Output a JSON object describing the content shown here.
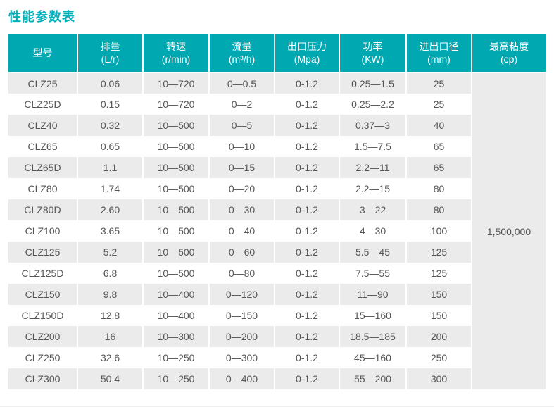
{
  "page_title": "性能参数表",
  "colors": {
    "accent_teal": "#00a9b2",
    "title_teal": "#00b1bb",
    "row_alt_gray": "#ebebeb",
    "merged_cell_gray": "#efefef",
    "header_text": "#ffffff",
    "body_text": "#555555"
  },
  "table": {
    "headers": [
      {
        "name": "型号",
        "unit": ""
      },
      {
        "name": "排量",
        "unit": "(L/r)"
      },
      {
        "name": "转速",
        "unit": "(r/min)"
      },
      {
        "name": "流量",
        "unit": "(m³/h)"
      },
      {
        "name": "出口压力",
        "unit": "(Mpa)"
      },
      {
        "name": "功率",
        "unit": "(KW)"
      },
      {
        "name": "进出口径",
        "unit": "(mm)"
      },
      {
        "name": "最高粘度",
        "unit": "(cp)"
      }
    ],
    "max_viscosity": "1,500,000",
    "rows": [
      [
        "CLZ25",
        "0.06",
        "10—720",
        "0—0.5",
        "0-1.2",
        "0.25—1.5",
        "25"
      ],
      [
        "CLZ25D",
        "0.15",
        "10—720",
        "0—2",
        "0-1.2",
        "0.25—2.2",
        "25"
      ],
      [
        "CLZ40",
        "0.32",
        "10—500",
        "0—5",
        "0-1.2",
        "0.37—3",
        "40"
      ],
      [
        "CLZ65",
        "0.65",
        "10—500",
        "0—10",
        "0-1.2",
        "1.5—7.5",
        "65"
      ],
      [
        "CLZ65D",
        "1.1",
        "10—500",
        "0—15",
        "0-1.2",
        "2.2—11",
        "65"
      ],
      [
        "CLZ80",
        "1.74",
        "10—500",
        "0—20",
        "0-1.2",
        "2.2—15",
        "80"
      ],
      [
        "CLZ80D",
        "2.60",
        "10—500",
        "0—30",
        "0-1.2",
        "3—22",
        "80"
      ],
      [
        "CLZ100",
        "3.65",
        "10—500",
        "0—40",
        "0-1.2",
        "4—30",
        "100"
      ],
      [
        "CLZ125",
        "5.2",
        "10—500",
        "0—60",
        "0-1.2",
        "5.5—45",
        "125"
      ],
      [
        "CLZ125D",
        "6.8",
        "10—500",
        "0—80",
        "0-1.2",
        "7.5—55",
        "125"
      ],
      [
        "CLZ150",
        "9.8",
        "10—400",
        "0—120",
        "0-1.2",
        "11—90",
        "150"
      ],
      [
        "CLZ150D",
        "12.8",
        "10—400",
        "0—150",
        "0-1.2",
        "15—160",
        "150"
      ],
      [
        "CLZ200",
        "16",
        "10—300",
        "0—200",
        "0-1.2",
        "18.5—185",
        "200"
      ],
      [
        "CLZ250",
        "32.6",
        "10—250",
        "0—300",
        "0-1.2",
        "45—160",
        "250"
      ],
      [
        "CLZ300",
        "50.4",
        "10—250",
        "0—400",
        "0-1.2",
        "55—200",
        "300"
      ]
    ]
  }
}
